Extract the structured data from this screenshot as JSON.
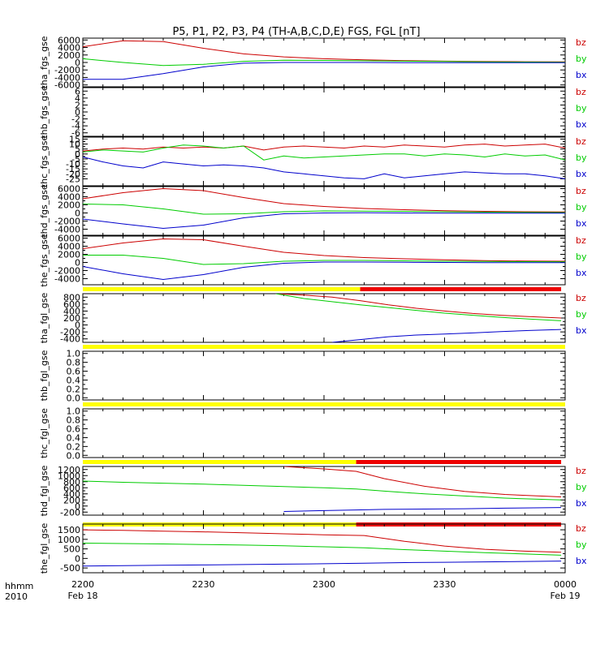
{
  "title": "P5, P1, P2, P3, P4 (TH-A,B,C,D,E) FGS, FGL [nT]",
  "colors": {
    "bx": "#0000cc",
    "by": "#00cc00",
    "bz": "#cc0000",
    "bar_yellow": "#ffff00",
    "bar_red": "#ee0000",
    "axis": "#000000",
    "background": "#ffffff"
  },
  "x_axis": {
    "corner_labels": [
      "hhmm",
      "2010"
    ],
    "ticks": [
      {
        "value": 0,
        "label": "2200",
        "sublabel": "Feb 18"
      },
      {
        "value": 30,
        "label": "2230",
        "sublabel": ""
      },
      {
        "value": 60,
        "label": "2300",
        "sublabel": ""
      },
      {
        "value": 90,
        "label": "2330",
        "sublabel": ""
      },
      {
        "value": 120,
        "label": "0000",
        "sublabel": "Feb 19"
      }
    ],
    "range": [
      0,
      120
    ],
    "units": "minutes after 2200 UT, Feb 18 2010"
  },
  "chart_data": [
    {
      "type": "line",
      "ylabel": "tha_fgs_gse",
      "ylim": [
        -6500,
        6500
      ],
      "yticks": [
        -6000,
        -4000,
        -2000,
        0,
        2000,
        4000,
        6000
      ],
      "x": [
        0,
        10,
        20,
        30,
        40,
        50,
        60,
        70,
        80,
        90,
        100,
        110,
        120
      ],
      "series": [
        {
          "name": "bz",
          "color": "bz",
          "values": [
            4200,
            5800,
            5600,
            3800,
            2300,
            1500,
            1000,
            700,
            500,
            350,
            250,
            200,
            150
          ]
        },
        {
          "name": "by",
          "color": "by",
          "values": [
            1000,
            0,
            -800,
            -500,
            300,
            600,
            550,
            450,
            350,
            250,
            150,
            100,
            50
          ]
        },
        {
          "name": "bx",
          "color": "bx",
          "values": [
            -4500,
            -4500,
            -3000,
            -1200,
            -200,
            0,
            0,
            0,
            -50,
            -50,
            -50,
            -50,
            -50
          ]
        }
      ]
    },
    {
      "type": "line",
      "ylabel": "thb_fgs_gse",
      "ylim": [
        -7,
        7
      ],
      "yticks": [
        -6,
        -4,
        -2,
        0,
        2,
        4,
        6
      ],
      "x": [],
      "series": [
        {
          "name": "bz",
          "color": "bz",
          "values": []
        },
        {
          "name": "by",
          "color": "by",
          "values": []
        },
        {
          "name": "bx",
          "color": "bx",
          "values": []
        }
      ]
    },
    {
      "type": "line",
      "ylabel": "thc_fgs_gse",
      "ylim": [
        -32,
        17
      ],
      "yticks": [
        -25,
        -20,
        -15,
        -10,
        -5,
        0,
        5,
        10,
        15
      ],
      "x": [
        0,
        5,
        10,
        15,
        20,
        25,
        30,
        35,
        40,
        45,
        50,
        55,
        60,
        65,
        70,
        75,
        80,
        85,
        90,
        95,
        100,
        105,
        110,
        115,
        120
      ],
      "series": [
        {
          "name": "bz",
          "color": "bz",
          "values": [
            3,
            5,
            6,
            5,
            7,
            6,
            7,
            6,
            8,
            4,
            7,
            8,
            7,
            6,
            8,
            7,
            9,
            8,
            7,
            9,
            10,
            8,
            9,
            10,
            6
          ]
        },
        {
          "name": "by",
          "color": "by",
          "values": [
            2,
            4,
            3,
            2,
            6,
            9,
            8,
            6,
            8,
            -6,
            -2,
            -4,
            -3,
            -2,
            -1,
            0,
            0,
            -2,
            0,
            -1,
            -3,
            0,
            -2,
            -1,
            -6
          ]
        },
        {
          "name": "bx",
          "color": "bx",
          "values": [
            -3,
            -8,
            -12,
            -14,
            -8,
            -10,
            -12,
            -11,
            -12,
            -14,
            -18,
            -20,
            -22,
            -24,
            -25,
            -20,
            -24,
            -22,
            -20,
            -18,
            -19,
            -20,
            -20,
            -22,
            -25
          ]
        }
      ]
    },
    {
      "type": "line",
      "ylabel": "thd_fgs_gse",
      "ylim": [
        -5500,
        6500
      ],
      "yticks": [
        -4000,
        -2000,
        0,
        2000,
        4000,
        6000
      ],
      "x": [
        0,
        10,
        20,
        30,
        40,
        50,
        60,
        70,
        80,
        90,
        100,
        110,
        120
      ],
      "series": [
        {
          "name": "bz",
          "color": "bz",
          "values": [
            3500,
            5000,
            6000,
            5500,
            3800,
            2300,
            1600,
            1100,
            800,
            550,
            400,
            300,
            250
          ]
        },
        {
          "name": "by",
          "color": "by",
          "values": [
            2200,
            2000,
            1000,
            -300,
            -200,
            300,
            500,
            450,
            400,
            300,
            200,
            150,
            100
          ]
        },
        {
          "name": "bx",
          "color": "bx",
          "values": [
            -1500,
            -2700,
            -3800,
            -3000,
            -1200,
            -200,
            0,
            50,
            0,
            -50,
            -50,
            -50,
            -50
          ]
        }
      ]
    },
    {
      "type": "line",
      "ylabel": "the_fgs_gse",
      "ylim": [
        -5500,
        6500
      ],
      "yticks": [
        -4000,
        -2000,
        0,
        2000,
        4000,
        6000
      ],
      "x": [
        0,
        10,
        20,
        30,
        40,
        50,
        60,
        70,
        80,
        90,
        100,
        110,
        120
      ],
      "series": [
        {
          "name": "bz",
          "color": "bz",
          "values": [
            3400,
            4800,
            5800,
            5600,
            4000,
            2500,
            1700,
            1200,
            900,
            650,
            450,
            350,
            300
          ]
        },
        {
          "name": "by",
          "color": "by",
          "values": [
            1800,
            1800,
            1000,
            -500,
            -300,
            300,
            500,
            500,
            400,
            300,
            250,
            200,
            150
          ]
        },
        {
          "name": "bx",
          "color": "bx",
          "values": [
            -1000,
            -2800,
            -4200,
            -3000,
            -1200,
            -200,
            100,
            100,
            50,
            0,
            -50,
            -50,
            -50
          ]
        }
      ]
    },
    {
      "type": "line",
      "ylabel": "tha_fgl_gse",
      "ylim": [
        -500,
        900
      ],
      "yticks": [
        -400,
        -200,
        0,
        200,
        400,
        600,
        800
      ],
      "status_bar": [
        {
          "from": 0,
          "to": 69,
          "color": "bar_yellow"
        },
        {
          "from": 69,
          "to": 119,
          "color": "bar_red"
        }
      ],
      "x": [
        48,
        55,
        62,
        69,
        76,
        83,
        90,
        97,
        104,
        111,
        119
      ],
      "series": [
        {
          "name": "bz",
          "color": "bz",
          "values": [
            900,
            860,
            800,
            700,
            580,
            480,
            400,
            330,
            280,
            240,
            200
          ]
        },
        {
          "name": "by",
          "color": "by",
          "values": [
            900,
            760,
            670,
            580,
            500,
            420,
            340,
            280,
            220,
            170,
            120
          ]
        },
        {
          "name": "bx",
          "color": "bx",
          "values": [
            null,
            null,
            -500,
            -420,
            -340,
            -290,
            -260,
            -230,
            -190,
            -160,
            -130
          ]
        }
      ]
    },
    {
      "type": "line",
      "ylabel": "thb_fgl_gse",
      "ylim": [
        -0.05,
        1.05
      ],
      "yticks": [
        0.0,
        0.2,
        0.4,
        0.6,
        0.8,
        1.0
      ],
      "status_bar": [
        {
          "from": 0,
          "to": 120,
          "color": "bar_yellow"
        }
      ],
      "x": [],
      "series": []
    },
    {
      "type": "line",
      "ylabel": "thc_fgl_gse",
      "ylim": [
        -0.05,
        1.05
      ],
      "yticks": [
        0.0,
        0.2,
        0.4,
        0.6,
        0.8,
        1.0
      ],
      "status_bar": [
        {
          "from": 0,
          "to": 120,
          "color": "bar_yellow"
        }
      ],
      "x": [],
      "series": []
    },
    {
      "type": "line",
      "ylabel": "thd_fgl_gse",
      "ylim": [
        -300,
        1300
      ],
      "yticks": [
        -200,
        0,
        200,
        400,
        600,
        800,
        1000,
        1200
      ],
      "status_bar": [
        {
          "from": 0,
          "to": 68,
          "color": "bar_yellow"
        },
        {
          "from": 68,
          "to": 119,
          "color": "bar_red"
        }
      ],
      "x": [
        0,
        10,
        20,
        30,
        40,
        50,
        60,
        68,
        75,
        85,
        95,
        105,
        119
      ],
      "series": [
        {
          "name": "bz",
          "color": "bz",
          "values": [
            null,
            null,
            null,
            null,
            null,
            1300,
            1220,
            1140,
            900,
            650,
            480,
            380,
            300
          ]
        },
        {
          "name": "by",
          "color": "by",
          "values": [
            820,
            780,
            750,
            720,
            680,
            640,
            600,
            560,
            490,
            400,
            330,
            260,
            200
          ]
        },
        {
          "name": "bx",
          "color": "bx",
          "values": [
            null,
            null,
            null,
            null,
            null,
            -180,
            -150,
            -130,
            -110,
            -100,
            -90,
            -70,
            -50
          ]
        }
      ]
    },
    {
      "type": "line",
      "ylabel": "the_fgl_gse",
      "ylim": [
        -750,
        1800
      ],
      "yticks": [
        -500,
        0,
        500,
        1000,
        1500
      ],
      "status_bar": [
        {
          "from": 0,
          "to": 68,
          "color": "bar_yellow"
        },
        {
          "from": 68,
          "to": 119,
          "color": "bar_red"
        }
      ],
      "x": [
        0,
        10,
        20,
        30,
        40,
        50,
        60,
        70,
        80,
        90,
        100,
        110,
        119
      ],
      "series": [
        {
          "name": "bz",
          "color": "bz",
          "values": [
            1500,
            1470,
            1430,
            1390,
            1340,
            1290,
            1240,
            1200,
            900,
            650,
            480,
            380,
            320
          ]
        },
        {
          "name": "by",
          "color": "by",
          "values": [
            800,
            780,
            760,
            730,
            700,
            660,
            610,
            560,
            460,
            380,
            300,
            230,
            170
          ]
        },
        {
          "name": "bx",
          "color": "bx",
          "values": [
            -400,
            -380,
            -360,
            -340,
            -320,
            -300,
            -280,
            -250,
            -220,
            -200,
            -180,
            -160,
            -140
          ]
        }
      ]
    }
  ]
}
